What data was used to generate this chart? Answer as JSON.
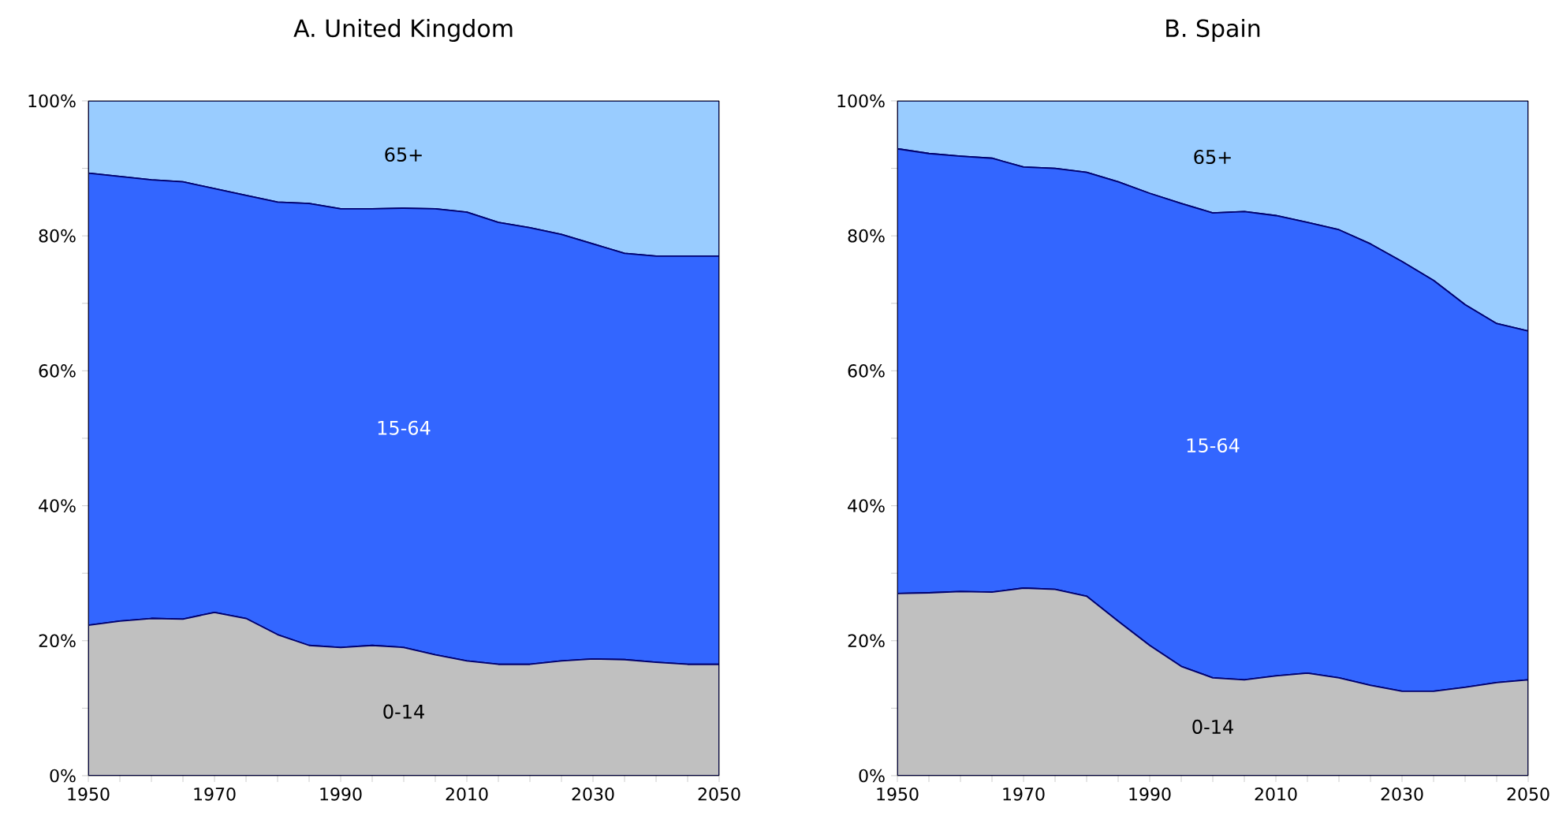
{
  "chart_data": [
    {
      "type": "area",
      "title": "A. United Kingdom",
      "stacked": true,
      "x": [
        1950,
        1955,
        1960,
        1965,
        1970,
        1975,
        1980,
        1985,
        1990,
        1995,
        2000,
        2005,
        2010,
        2015,
        2020,
        2025,
        2030,
        2035,
        2040,
        2045,
        2050
      ],
      "series": [
        {
          "name": "0-14",
          "color": "#c0c0c0",
          "values": [
            22.3,
            22.9,
            23.3,
            23.2,
            24.2,
            23.3,
            20.9,
            19.3,
            19.0,
            19.3,
            19.0,
            17.9,
            17.0,
            16.5,
            16.5,
            17.0,
            17.3,
            17.2,
            16.8,
            16.5,
            16.5
          ]
        },
        {
          "name": "15-64",
          "color": "#3366ff",
          "values": [
            67.0,
            65.9,
            65.0,
            64.8,
            62.8,
            62.7,
            64.1,
            65.5,
            65.0,
            64.7,
            65.1,
            66.1,
            66.5,
            65.5,
            64.7,
            63.2,
            61.5,
            60.2,
            60.2,
            60.5,
            60.5
          ]
        },
        {
          "name": "65+",
          "color": "#99ccff",
          "values": [
            10.7,
            11.2,
            11.7,
            12.0,
            13.0,
            14.0,
            15.0,
            15.2,
            16.0,
            16.0,
            15.9,
            16.0,
            16.5,
            18.0,
            18.8,
            19.8,
            21.2,
            22.6,
            23.0,
            23.0,
            23.0
          ]
        }
      ],
      "xlim": [
        1950,
        2050
      ],
      "ylim": [
        0,
        100
      ],
      "xticks": [
        1950,
        {
          "value": 1955,
          "label": null
        },
        {
          "value": 1960,
          "label": null
        },
        {
          "value": 1965,
          "label": null
        },
        1970,
        {
          "value": 1975,
          "label": null
        },
        {
          "value": 1980,
          "label": null
        },
        {
          "value": 1985,
          "label": null
        },
        1990,
        {
          "value": 1995,
          "label": null
        },
        {
          "value": 2000,
          "label": null
        },
        {
          "value": 2005,
          "label": null
        },
        2010,
        {
          "value": 2015,
          "label": null
        },
        {
          "value": 2020,
          "label": null
        },
        {
          "value": 2025,
          "label": null
        },
        2030,
        {
          "value": 2035,
          "label": null
        },
        {
          "value": 2040,
          "label": null
        },
        {
          "value": 2045,
          "label": null
        },
        2050
      ],
      "yticks": [
        {
          "value": 0,
          "label": "0%"
        },
        {
          "value": 10,
          "label": null
        },
        {
          "value": 20,
          "label": "20%"
        },
        {
          "value": 30,
          "label": null
        },
        {
          "value": 40,
          "label": "40%"
        },
        {
          "value": 50,
          "label": null
        },
        {
          "value": 60,
          "label": "60%"
        },
        {
          "value": 70,
          "label": null
        },
        {
          "value": 80,
          "label": "80%"
        },
        {
          "value": 90,
          "label": null
        },
        {
          "value": 100,
          "label": "100%"
        }
      ]
    },
    {
      "type": "area",
      "title": "B. Spain",
      "stacked": true,
      "x": [
        1950,
        1955,
        1960,
        1965,
        1970,
        1975,
        1980,
        1985,
        1990,
        1995,
        2000,
        2005,
        2010,
        2015,
        2020,
        2025,
        2030,
        2035,
        2040,
        2045,
        2050
      ],
      "series": [
        {
          "name": "0-14",
          "color": "#c0c0c0",
          "values": [
            27.0,
            27.1,
            27.3,
            27.2,
            27.8,
            27.6,
            26.6,
            22.9,
            19.3,
            16.2,
            14.5,
            14.2,
            14.8,
            15.2,
            14.5,
            13.4,
            12.5,
            12.5,
            13.1,
            13.8,
            14.2
          ]
        },
        {
          "name": "15-64",
          "color": "#3366ff",
          "values": [
            65.9,
            65.1,
            64.5,
            64.3,
            62.4,
            62.4,
            62.8,
            65.1,
            67.0,
            68.6,
            68.9,
            69.4,
            68.2,
            66.8,
            66.4,
            65.4,
            63.7,
            60.9,
            56.7,
            53.2,
            51.7
          ]
        },
        {
          "name": "65+",
          "color": "#99ccff",
          "values": [
            7.1,
            7.8,
            8.2,
            8.5,
            9.8,
            10.0,
            10.6,
            12.0,
            13.7,
            15.2,
            16.6,
            16.4,
            17.0,
            18.0,
            19.1,
            21.2,
            23.8,
            26.6,
            30.2,
            33.0,
            34.1
          ]
        }
      ],
      "xlim": [
        1950,
        2050
      ],
      "ylim": [
        0,
        100
      ],
      "xticks": [
        1950,
        {
          "value": 1955,
          "label": null
        },
        {
          "value": 1960,
          "label": null
        },
        {
          "value": 1965,
          "label": null
        },
        1970,
        {
          "value": 1975,
          "label": null
        },
        {
          "value": 1980,
          "label": null
        },
        {
          "value": 1985,
          "label": null
        },
        1990,
        {
          "value": 1995,
          "label": null
        },
        {
          "value": 2000,
          "label": null
        },
        {
          "value": 2005,
          "label": null
        },
        2010,
        {
          "value": 2015,
          "label": null
        },
        {
          "value": 2020,
          "label": null
        },
        {
          "value": 2025,
          "label": null
        },
        2030,
        {
          "value": 2035,
          "label": null
        },
        {
          "value": 2040,
          "label": null
        },
        {
          "value": 2045,
          "label": null
        },
        2050
      ],
      "yticks": [
        {
          "value": 0,
          "label": "0%"
        },
        {
          "value": 10,
          "label": null
        },
        {
          "value": 20,
          "label": "20%"
        },
        {
          "value": 30,
          "label": null
        },
        {
          "value": 40,
          "label": "40%"
        },
        {
          "value": 50,
          "label": null
        },
        {
          "value": 60,
          "label": "60%"
        },
        {
          "value": 70,
          "label": null
        },
        {
          "value": 80,
          "label": "80%"
        },
        {
          "value": 90,
          "label": null
        },
        {
          "value": 100,
          "label": "100%"
        }
      ]
    }
  ]
}
